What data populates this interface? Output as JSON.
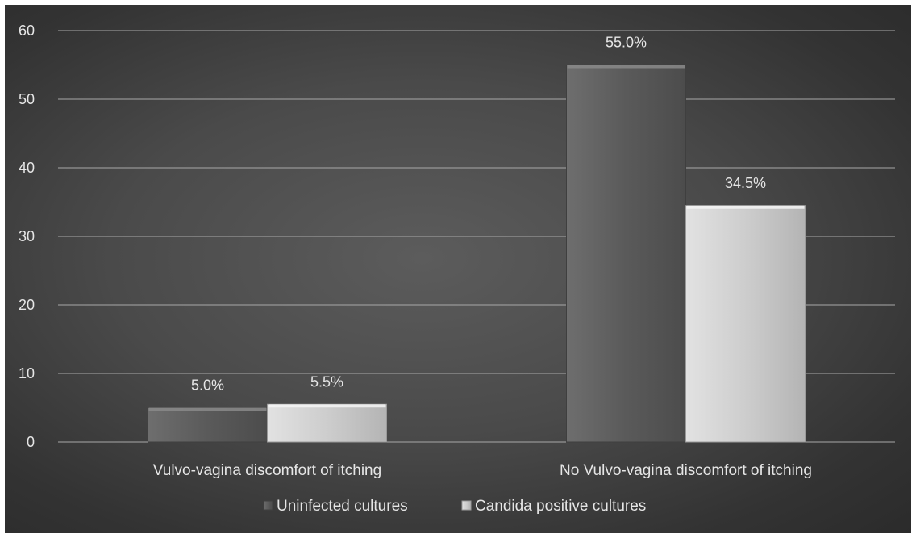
{
  "chart_data": {
    "type": "bar",
    "categories": [
      "Vulvo-vagina discomfort of itching",
      "No Vulvo-vagina discomfort of itching"
    ],
    "series": [
      {
        "name": "Uninfected cultures",
        "values": [
          5.0,
          55.0
        ],
        "data_labels": [
          "5.0%",
          "55.0%"
        ],
        "color": "#5f5f5f"
      },
      {
        "name": "Candida positive cultures",
        "values": [
          5.5,
          34.5
        ],
        "data_labels": [
          "5.5%",
          "34.5%"
        ],
        "color": "#c8c8c8"
      }
    ],
    "title": "",
    "xlabel": "",
    "ylabel": "",
    "ylim": [
      0,
      60
    ],
    "yticks": [
      "0",
      "10",
      "20",
      "30",
      "40",
      "50",
      "60"
    ],
    "grid": true,
    "legend": "bottom-center",
    "background": "#4a4a4a"
  }
}
